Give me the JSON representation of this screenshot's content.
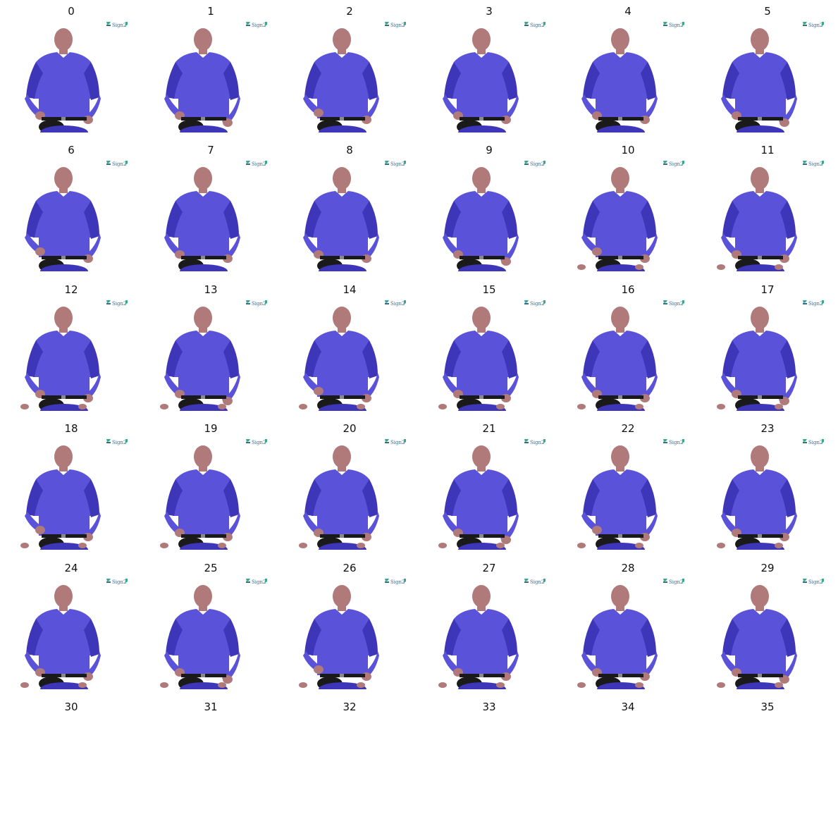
{
  "grid": {
    "columns": 6,
    "frame_labels": [
      "0",
      "1",
      "2",
      "3",
      "4",
      "5",
      "6",
      "7",
      "8",
      "9",
      "10",
      "11",
      "12",
      "13",
      "14",
      "15",
      "16",
      "17",
      "18",
      "19",
      "20",
      "21",
      "22",
      "23",
      "24",
      "25",
      "26",
      "27",
      "28",
      "29",
      "30",
      "31",
      "32",
      "33",
      "34",
      "35"
    ],
    "frames_with_image": 30,
    "watermark_text": "Sign2"
  },
  "colors": {
    "shirt": "#5a52d8",
    "shirt_shadow": "#3e36b8",
    "skin": "#b07a7a",
    "belt": "#1a1a1a",
    "background": "#ffffff",
    "label": "#111111",
    "watermark_text": "#3b6a8a",
    "watermark_accent": "#3aa88a"
  },
  "icons": {
    "frame": "signer-figure",
    "watermark": "sign-language-logo"
  }
}
